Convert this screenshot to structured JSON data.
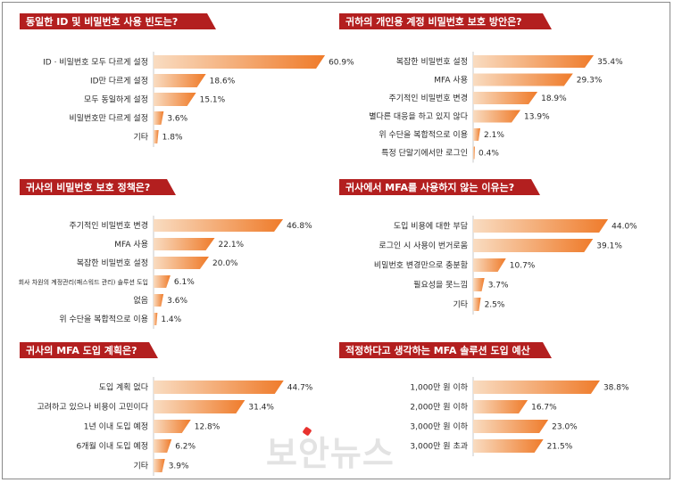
{
  "colors": {
    "title_bar": "#b31f1f",
    "bar_start": "#f9dcc1",
    "bar_end": "#ef7b2a",
    "axis": "#c8c8c8",
    "text": "#2a2a2a"
  },
  "watermark": "보안뉴스",
  "chart_data": [
    {
      "type": "bar",
      "title": "동일한 ID 및 비밀번호 사용 빈도는?",
      "categories": [
        "ID · 비밀번호 모두 다르게 설정",
        "ID만 다르게 설정",
        "모두 동일하게 설정",
        "비밀번호만 다르게 설정",
        "기타"
      ],
      "values": [
        60.9,
        18.6,
        15.1,
        3.6,
        1.8
      ],
      "value_labels": [
        "60.9%",
        "18.6%",
        "15.1%",
        "3.6%",
        "1.8%"
      ],
      "xlim": [
        0,
        65
      ]
    },
    {
      "type": "bar",
      "title": "귀하의 개인용 계정 비밀번호 보호 방안은?",
      "categories": [
        "복잡한 비밀번호 설정",
        "MFA 사용",
        "주기적인 비밀번호 변경",
        "별다른 대응을 하고 있지 않다",
        "위 수단을 복합적으로 이용",
        "특정 단말기에서만 로그인"
      ],
      "values": [
        35.4,
        29.3,
        18.9,
        13.9,
        2.1,
        0.4
      ],
      "value_labels": [
        "35.4%",
        "29.3%",
        "18.9%",
        "13.9%",
        "2.1%",
        "0.4%"
      ],
      "xlim": [
        0,
        38
      ]
    },
    {
      "type": "bar",
      "title": "귀사의 비밀번호 보호 정책은?",
      "categories": [
        "주기적인 비밀번호 변경",
        "MFA 사용",
        "복잡한 비밀번호 설정",
        "회사 차원의 계정관리(패스워드 관리) 솔루션 도입",
        "없음",
        "위 수단을 복합적으로 이용"
      ],
      "values": [
        46.8,
        22.1,
        20.0,
        6.1,
        3.6,
        1.4
      ],
      "value_labels": [
        "46.8%",
        "22.1%",
        "20.0%",
        "6.1%",
        "3.6%",
        "1.4%"
      ],
      "xlim": [
        0,
        50
      ]
    },
    {
      "type": "bar",
      "title": "귀사에서 MFA를 사용하지 않는 이유는?",
      "categories": [
        "도입 비용에 대한 부담",
        "로그인 시 사용이 번거로움",
        "비밀번호 변경만으로 충분함",
        "필요성을 못느낌",
        "기타"
      ],
      "values": [
        44.0,
        39.1,
        10.7,
        3.7,
        2.5
      ],
      "value_labels": [
        "44.0%",
        "39.1%",
        "10.7%",
        "3.7%",
        "2.5%"
      ],
      "xlim": [
        0,
        46
      ]
    },
    {
      "type": "bar",
      "title": "귀사의 MFA 도입 계획은?",
      "categories": [
        "도입 계획 없다",
        "고려하고 있으나 비용이 고민이다",
        "1년 이내 도입 예정",
        "6개월 이내 도입 예정",
        "기타"
      ],
      "values": [
        44.7,
        31.4,
        12.8,
        6.2,
        3.9
      ],
      "value_labels": [
        "44.7%",
        "31.4%",
        "12.8%",
        "6.2%",
        "3.9%"
      ],
      "xlim": [
        0,
        46
      ]
    },
    {
      "type": "bar",
      "title": "적정하다고 생각하는 MFA 솔루션 도입 예산",
      "categories": [
        "1,000만 원 이하",
        "2,000만 원 이하",
        "3,000만 원 이하",
        "3,000만 원 초과"
      ],
      "values": [
        38.8,
        16.7,
        23.0,
        21.5
      ],
      "value_labels": [
        "38.8%",
        "16.7%",
        "23.0%",
        "21.5%"
      ],
      "xlim": [
        0,
        41
      ]
    }
  ]
}
